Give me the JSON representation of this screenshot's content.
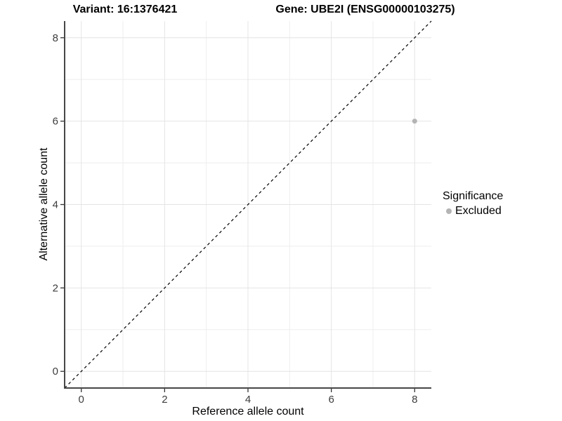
{
  "titles": {
    "variant": "Variant: 16:1376421",
    "gene": "Gene: UBE2I (ENSG00000103275)"
  },
  "chart_data": {
    "type": "scatter",
    "xlabel": "Reference allele count",
    "ylabel": "Alternative allele count",
    "xlim": [
      -0.4,
      8.4
    ],
    "ylim": [
      -0.4,
      8.4
    ],
    "x_ticks": [
      0,
      2,
      4,
      6,
      8
    ],
    "y_ticks": [
      0,
      2,
      4,
      6,
      8
    ],
    "x_minor": [
      1,
      3,
      5,
      7
    ],
    "y_minor": [
      1,
      3,
      5,
      7
    ],
    "points": [
      {
        "x": 8,
        "y": 6,
        "series": "Excluded"
      }
    ],
    "reference_line": {
      "type": "identity",
      "style": "dashed",
      "from": [
        -0.4,
        -0.4
      ],
      "to": [
        8.4,
        8.4
      ]
    },
    "legend": {
      "title": "Significance",
      "position": "right",
      "entries": [
        {
          "label": "Excluded",
          "color": "#b4b4b4"
        }
      ]
    },
    "colors": {
      "point": "#b4b4b4",
      "grid_major": "#e4e4e4",
      "grid_minor": "#eeeeee",
      "axis_line": "#474747",
      "tick_mark": "#333333",
      "tick_label": "#3d3d3d",
      "dashed_line": "#000000"
    }
  }
}
